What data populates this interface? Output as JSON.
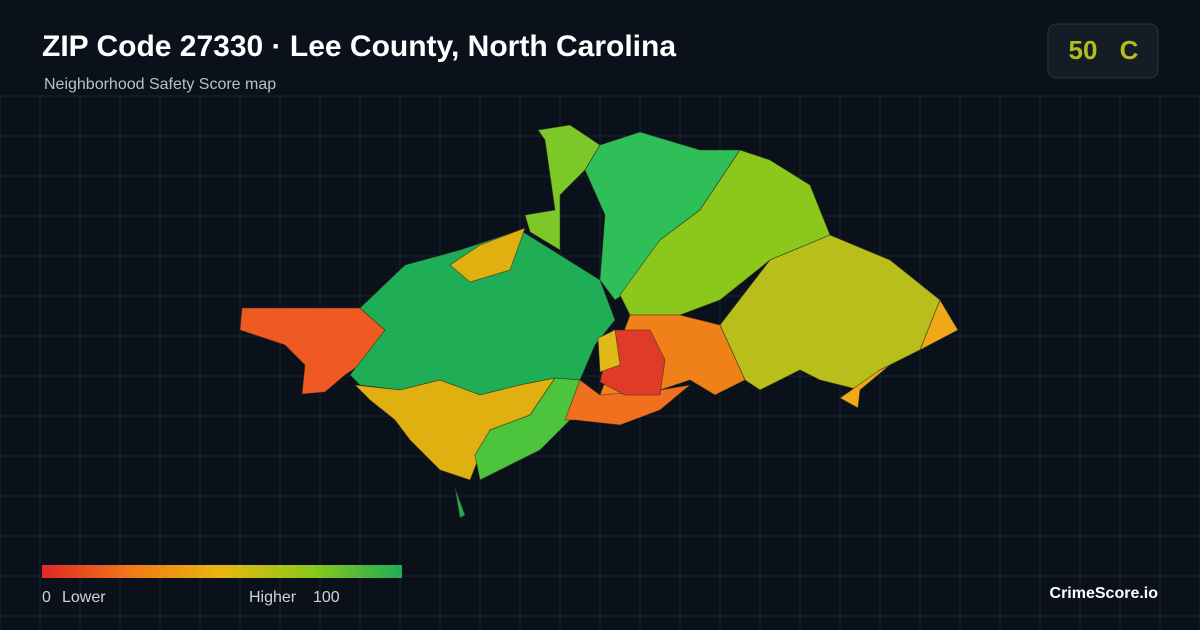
{
  "header": {
    "title": "ZIP Code 27330 · Lee County, North Carolina",
    "subtitle": "Neighborhood Safety Score map"
  },
  "score": {
    "value": 50,
    "grade": "C"
  },
  "legend": {
    "min": 0,
    "min_label": "Lower",
    "max_label": "Higher",
    "max": 100
  },
  "footer": {
    "brand": "CrimeScore.io"
  }
}
